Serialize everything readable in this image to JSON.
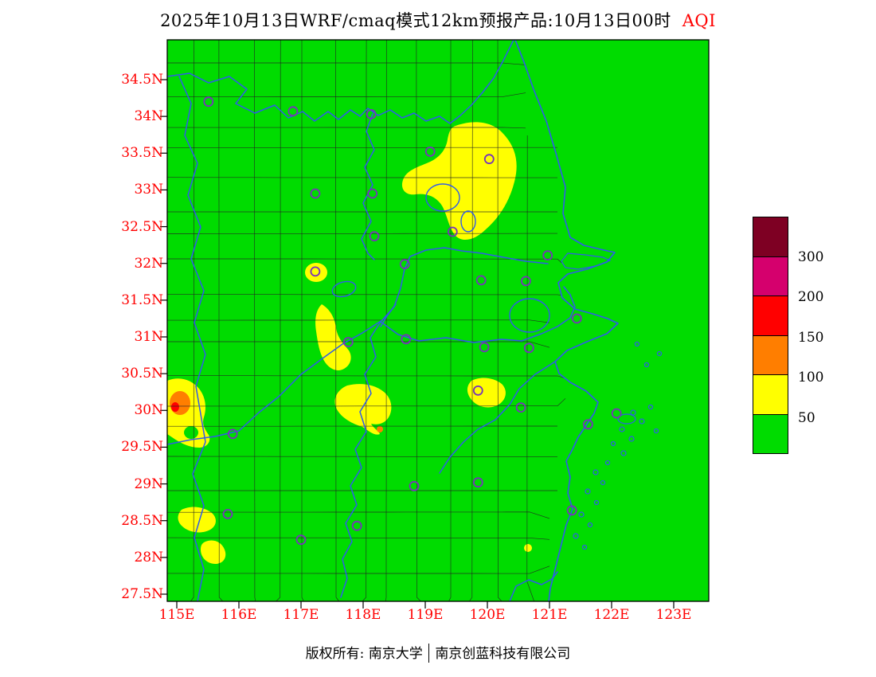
{
  "title": {
    "text": "2025年10月13日WRF/cmaq模式12km预报产品:10月13日00时",
    "variable": "AQI"
  },
  "axes": {
    "label_color": "#ff0000",
    "lat_ticks": [
      "34.5N",
      "34N",
      "33.5N",
      "33N",
      "32.5N",
      "32N",
      "31.5N",
      "31N",
      "30.5N",
      "30N",
      "29.5N",
      "29N",
      "28.5N",
      "28N",
      "27.5N"
    ],
    "lon_ticks": [
      "115E",
      "116E",
      "117E",
      "118E",
      "119E",
      "120E",
      "121E",
      "122E",
      "123E"
    ]
  },
  "legend": {
    "labels": [
      "300",
      "200",
      "150",
      "100",
      "50"
    ],
    "colors": [
      "#7e0023",
      "#d5006d",
      "#ff0000",
      "#ff7e00",
      "#ffff00",
      "#00dc00"
    ]
  },
  "map": {
    "background": "#00dc00",
    "boundary_color": "#2f5bea",
    "county_color": "#222222",
    "marker_color": "#7733bb",
    "patch_colors": {
      "yellow": "#ffff00",
      "orange": "#ff7e00",
      "red": "#ff0000"
    },
    "markers": [
      {
        "lon": 115.51,
        "lat": 34.2
      },
      {
        "lon": 116.87,
        "lat": 34.07
      },
      {
        "lon": 118.13,
        "lat": 34.03
      },
      {
        "lon": 119.08,
        "lat": 33.52
      },
      {
        "lon": 120.03,
        "lat": 33.42
      },
      {
        "lon": 117.23,
        "lat": 32.95
      },
      {
        "lon": 118.15,
        "lat": 32.95
      },
      {
        "lon": 119.44,
        "lat": 32.43
      },
      {
        "lon": 118.18,
        "lat": 32.37
      },
      {
        "lon": 120.97,
        "lat": 32.11
      },
      {
        "lon": 117.23,
        "lat": 31.89
      },
      {
        "lon": 118.67,
        "lat": 31.99
      },
      {
        "lon": 119.9,
        "lat": 31.77
      },
      {
        "lon": 120.62,
        "lat": 31.76
      },
      {
        "lon": 121.44,
        "lat": 31.25
      },
      {
        "lon": 117.76,
        "lat": 30.93
      },
      {
        "lon": 118.69,
        "lat": 30.97
      },
      {
        "lon": 119.95,
        "lat": 30.86
      },
      {
        "lon": 120.67,
        "lat": 30.85
      },
      {
        "lon": 119.85,
        "lat": 30.27
      },
      {
        "lon": 120.54,
        "lat": 30.04
      },
      {
        "lon": 121.62,
        "lat": 29.81
      },
      {
        "lon": 122.08,
        "lat": 29.96
      },
      {
        "lon": 115.9,
        "lat": 29.68
      },
      {
        "lon": 118.82,
        "lat": 28.97
      },
      {
        "lon": 119.85,
        "lat": 29.02
      },
      {
        "lon": 115.82,
        "lat": 28.59
      },
      {
        "lon": 117.9,
        "lat": 28.43
      },
      {
        "lon": 117.0,
        "lat": 28.24
      },
      {
        "lon": 121.36,
        "lat": 28.64
      }
    ]
  },
  "footer": {
    "owner": "版权所有: 南京大学",
    "divider": "",
    "company": "南京创蓝科技有限公司"
  }
}
